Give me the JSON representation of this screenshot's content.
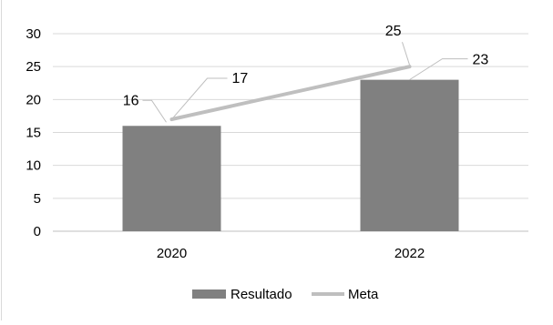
{
  "chart_data": {
    "type": "bar",
    "title": "",
    "xlabel": "",
    "ylabel": "",
    "ylim": [
      0,
      30
    ],
    "yticks": [
      0,
      5,
      10,
      15,
      20,
      25,
      30
    ],
    "grid": true,
    "legend_position": "bottom",
    "categories": [
      "2020",
      "2022"
    ],
    "series": [
      {
        "name": "Resultado",
        "kind": "bar",
        "color": "#808080",
        "values": [
          16,
          23
        ]
      },
      {
        "name": "Meta",
        "kind": "line",
        "color": "#bfbfbf",
        "values": [
          17,
          25
        ]
      }
    ],
    "data_labels": {
      "bar": [
        "16",
        "23"
      ],
      "line": [
        "17",
        "25"
      ]
    }
  }
}
